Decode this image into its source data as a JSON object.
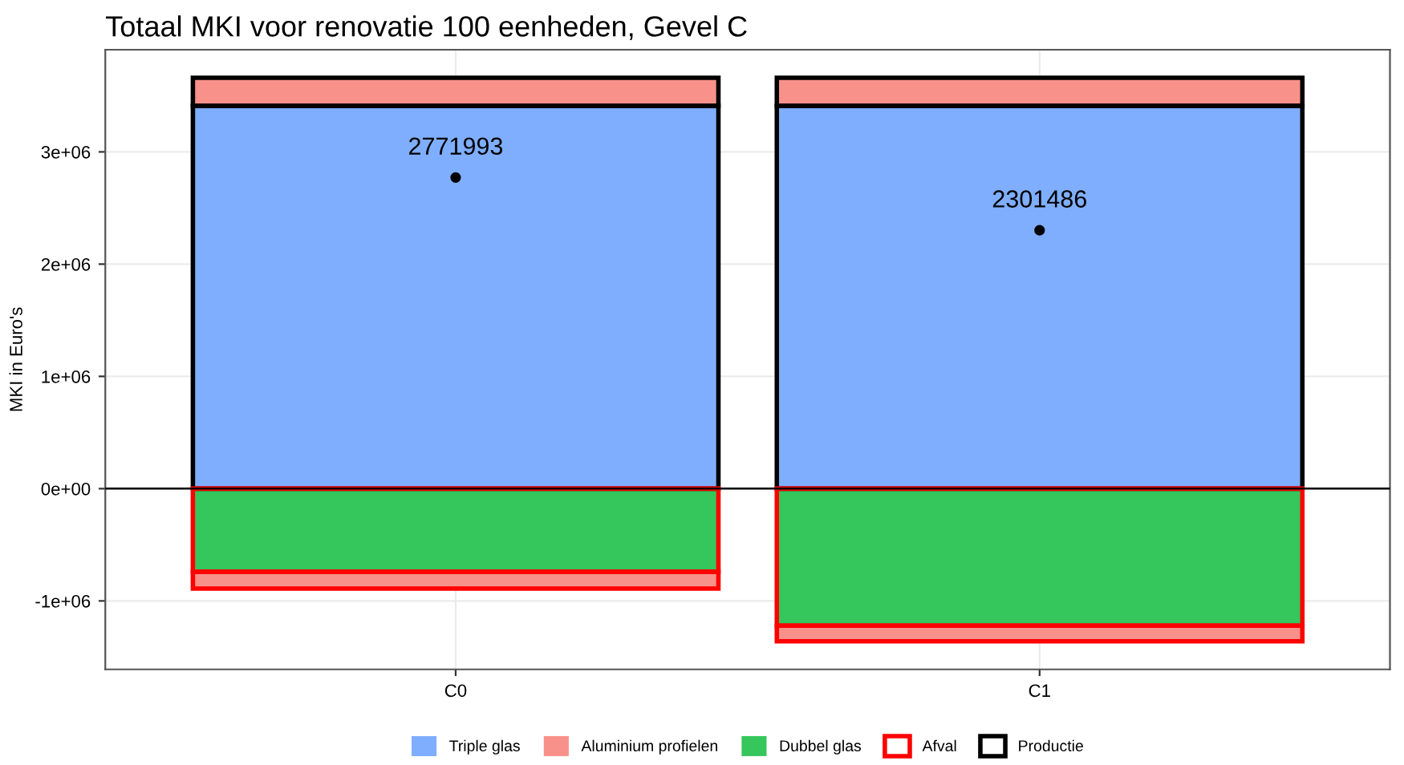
{
  "chart_data": {
    "type": "bar",
    "stacked": true,
    "title": "Totaal MKI voor renovatie 100 eenheden, Gevel C",
    "ylabel": "MKI in Euro's",
    "categories": [
      "C0",
      "C1"
    ],
    "series": [
      {
        "name": "Triple glas",
        "color": "#7faeff",
        "values": [
          3410000,
          3410000
        ]
      },
      {
        "name": "Aluminium profielen",
        "color": "#f8918a",
        "values": [
          250000,
          250000
        ]
      },
      {
        "name": "Dubbel glas",
        "color": "#35c65c",
        "values": [
          -740000,
          -1220000
        ]
      },
      {
        "color": "#f8918a",
        "values": [
          -150000,
          -140000
        ]
      },
      {
        "name": "Afval",
        "color": "#ff0000",
        "line_style": "solid",
        "values": [
          null,
          null
        ]
      },
      {
        "name": "Productie",
        "color": "#000000",
        "line_style": "solid",
        "values": [
          null,
          null
        ]
      },
      {
        "type": "scatter",
        "color": "#000000",
        "values": [
          2771993,
          2301486
        ],
        "value_labels": [
          "2771993",
          "2301486"
        ],
        "marker": "circle"
      }
    ],
    "ylim": [
      -1610000,
      3910000
    ],
    "yticks": [
      {
        "value": -1000000,
        "label": "-1e+06"
      },
      {
        "value": 0,
        "label": "0e+00"
      },
      {
        "value": 1000000,
        "label": "1e+06"
      },
      {
        "value": 2000000,
        "label": "2e+06"
      },
      {
        "value": 3000000,
        "label": "3e+06"
      }
    ],
    "ref_lines": [
      {
        "axis": "y",
        "value": 0,
        "color": "#000000"
      }
    ],
    "grid": true,
    "legend": "bottom"
  }
}
